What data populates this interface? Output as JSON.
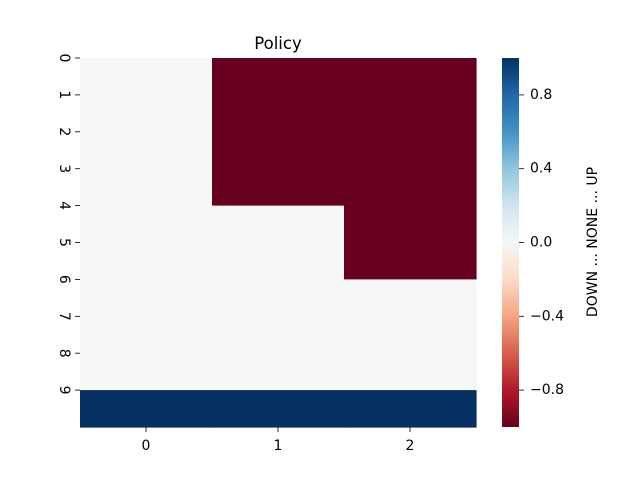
{
  "chart_data": {
    "type": "heatmap",
    "title": "Policy",
    "xlabel": "",
    "ylabel": "",
    "x_categories": [
      "0",
      "1",
      "2"
    ],
    "y_categories": [
      "0",
      "1",
      "2",
      "3",
      "4",
      "5",
      "6",
      "7",
      "8",
      "9"
    ],
    "values": [
      [
        0,
        -1,
        -1
      ],
      [
        0,
        -1,
        -1
      ],
      [
        0,
        -1,
        -1
      ],
      [
        0,
        -1,
        -1
      ],
      [
        0,
        0,
        -1
      ],
      [
        0,
        0,
        -1
      ],
      [
        0,
        0,
        0
      ],
      [
        0,
        0,
        0
      ],
      [
        0,
        0,
        0
      ],
      [
        1,
        1,
        1
      ]
    ],
    "colorbar": {
      "label": "DOWN ... NONE ... UP",
      "vmin": -1,
      "vmax": 1,
      "ticks": [
        -0.8,
        -0.4,
        0.0,
        0.4,
        0.8
      ],
      "tick_labels": [
        "−0.8",
        "−0.4",
        "0.0",
        "0.4",
        "0.8"
      ],
      "colormap": "RdBu",
      "colors": {
        "low": "#67001f",
        "mid": "#f5f6f6",
        "high": "#053061"
      }
    }
  }
}
